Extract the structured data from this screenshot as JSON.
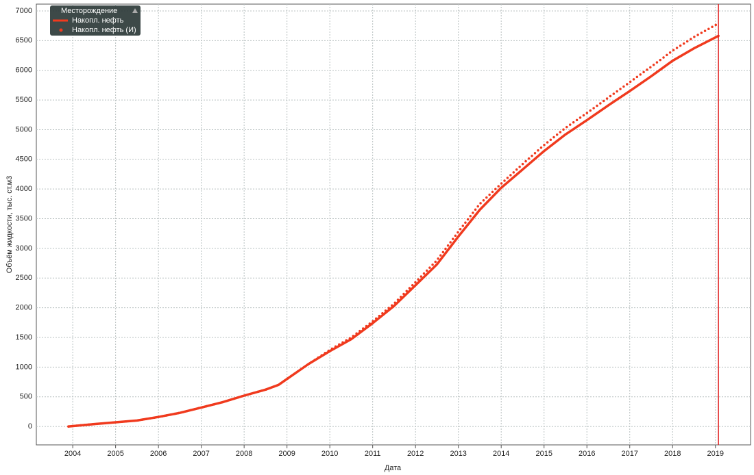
{
  "chart_data": {
    "type": "line",
    "x_label": "Дата",
    "y_label": "Объём жидкости, тыс. ст.м3",
    "legend_title": "Месторождение",
    "legend": "upper left",
    "grid": true,
    "x": [
      2003.9,
      2004.5,
      2005,
      2005.5,
      2006,
      2006.5,
      2007,
      2007.5,
      2008,
      2008.5,
      2008.8,
      2009,
      2009.5,
      2010,
      2010.5,
      2011,
      2011.5,
      2012,
      2012.5,
      2013,
      2013.5,
      2014,
      2014.5,
      2015,
      2015.5,
      2016,
      2016.5,
      2017,
      2017.5,
      2018,
      2018.5,
      2019.07
    ],
    "series": [
      {
        "name": "Накопл. нефть",
        "color": "#f03a1e",
        "style": "solid",
        "values": [
          0,
          40,
          70,
          100,
          160,
          230,
          320,
          410,
          520,
          620,
          700,
          800,
          1050,
          1270,
          1470,
          1740,
          2030,
          2380,
          2730,
          3200,
          3650,
          4020,
          4330,
          4640,
          4920,
          5160,
          5410,
          5650,
          5900,
          6160,
          6370,
          6580
        ]
      },
      {
        "name": "Накопл. нефть (И)",
        "color": "#f03a1e",
        "style": "dotted",
        "values": [
          0,
          40,
          70,
          100,
          160,
          230,
          320,
          410,
          520,
          620,
          700,
          800,
          1050,
          1290,
          1500,
          1770,
          2070,
          2430,
          2800,
          3280,
          3750,
          4090,
          4420,
          4740,
          5030,
          5280,
          5540,
          5800,
          6060,
          6330,
          6560,
          6790
        ]
      }
    ],
    "marker_x": 2019.07,
    "marker_color": "#e02020",
    "xlim": [
      2003.15,
      2019.82
    ],
    "xticks": [
      2004,
      2005,
      2006,
      2007,
      2008,
      2009,
      2010,
      2011,
      2012,
      2013,
      2014,
      2015,
      2016,
      2017,
      2018,
      2019
    ],
    "ylim": [
      -310,
      7115
    ],
    "yticks": [
      0,
      500,
      1000,
      1500,
      2000,
      2500,
      3000,
      3500,
      4000,
      4500,
      5000,
      5500,
      6000,
      6500,
      7000
    ]
  }
}
